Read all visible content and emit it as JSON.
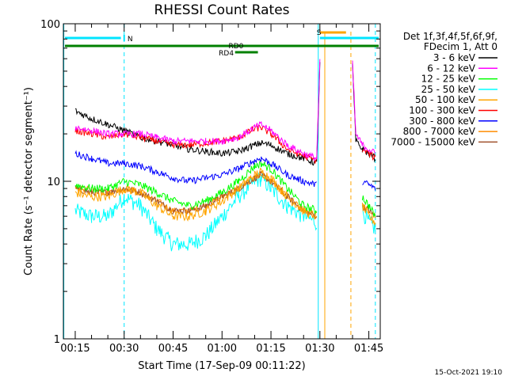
{
  "chart_data": {
    "type": "line",
    "title": "RHESSI Count Rates",
    "xlabel": "Start Time (17-Sep-09 00:11:22)",
    "ylabel": "Count Rate (s⁻¹ detector segment⁻¹)",
    "yscale": "log",
    "ylim": [
      1,
      100
    ],
    "xlim": [
      "00:11:22",
      "01:48:30"
    ],
    "x_tick_labels": [
      "00:15",
      "00:30",
      "00:45",
      "01:00",
      "01:15",
      "01:30",
      "01:45"
    ],
    "y_tick_labels": [
      "1",
      "10",
      "100"
    ],
    "x": [
      "00:15",
      "00:20",
      "00:25",
      "00:30",
      "00:35",
      "00:40",
      "00:45",
      "00:50",
      "00:55",
      "01:00",
      "01:05",
      "01:10",
      "01:12",
      "01:15",
      "01:20",
      "01:25",
      "01:29",
      "01:30",
      "01:31",
      "01:39",
      "01:40",
      "01:41",
      "01:43",
      "01:45",
      "01:47"
    ],
    "legend_header": [
      "Det 1f,3f,4f,5f,6f,9f,",
      "FDecim 1, Att 0"
    ],
    "series": [
      {
        "name": "3 - 6 keV",
        "color": "#000000",
        "values": [
          28,
          25,
          23,
          21,
          19,
          18,
          17,
          16,
          15.5,
          15,
          15.5,
          17,
          17.5,
          17,
          15,
          14,
          13,
          55,
          null,
          null,
          55,
          18,
          16,
          15,
          14
        ]
      },
      {
        "name": "6 - 12 keV",
        "color": "#ff00ff",
        "values": [
          22,
          21,
          20,
          20,
          20,
          19,
          18,
          18,
          18,
          18,
          19,
          22,
          23,
          21,
          17,
          15,
          14,
          57,
          null,
          null,
          57,
          20,
          17,
          16,
          15
        ]
      },
      {
        "name": "12 - 25 keV",
        "color": "#00ff00",
        "values": [
          9.5,
          9,
          9,
          10,
          9.5,
          8.5,
          7.5,
          7,
          7.5,
          8.5,
          10,
          12.5,
          13,
          12,
          9,
          7,
          6.5,
          null,
          null,
          null,
          null,
          null,
          8,
          7,
          6
        ]
      },
      {
        "name": "25 - 50 keV",
        "color": "#00ffff",
        "values": [
          6.5,
          6,
          6,
          8,
          7,
          5,
          4,
          4,
          4.5,
          6,
          8,
          10,
          10.5,
          9,
          7,
          6,
          5.5,
          null,
          null,
          null,
          null,
          null,
          6.5,
          5.5,
          5
        ]
      },
      {
        "name": "50 - 100 keV",
        "color": "#ffa500",
        "values": [
          8.5,
          8,
          8,
          9,
          8.5,
          7,
          6,
          6,
          6.5,
          7.5,
          9,
          11,
          11.5,
          10.5,
          8,
          6.5,
          6,
          null,
          null,
          null,
          null,
          null,
          7,
          6,
          5.5
        ]
      },
      {
        "name": "100 - 300 keV",
        "color": "#ff0000",
        "values": [
          21,
          20,
          19,
          20,
          19,
          18,
          17,
          17,
          17.5,
          18,
          19,
          21.5,
          22,
          20,
          16,
          14.5,
          13.5,
          null,
          null,
          null,
          null,
          null,
          16,
          15,
          14
        ]
      },
      {
        "name": "300 - 800 keV",
        "color": "#0000ff",
        "values": [
          15,
          14,
          13,
          13,
          12.5,
          11.5,
          10.5,
          10,
          10.5,
          11,
          12,
          13.5,
          14,
          13,
          11,
          10,
          9.5,
          null,
          null,
          null,
          null,
          null,
          10,
          9.5,
          9
        ]
      },
      {
        "name": "800 - 7000 keV",
        "color": "#ff8c00",
        "values": [
          9,
          8.8,
          8.5,
          9,
          8.5,
          7.5,
          6.5,
          6.5,
          7,
          8,
          9,
          10.5,
          11,
          10,
          8,
          6.5,
          6,
          null,
          null,
          null,
          null,
          null,
          7,
          6.5,
          6
        ]
      },
      {
        "name": "7000 - 15000 keV",
        "color": "#a0522d",
        "values": [
          9,
          8.5,
          8.5,
          9,
          8.5,
          7.5,
          6.5,
          6.5,
          7,
          8,
          9,
          10.5,
          11,
          10,
          8,
          6.5,
          6,
          null,
          null,
          null,
          null,
          null,
          7,
          6.5,
          6
        ]
      }
    ],
    "annotations": [
      {
        "label": "N",
        "color": "#00e5ff"
      },
      {
        "label": "S",
        "color": "#ffa500"
      },
      {
        "label": "RD0",
        "color": "#008000"
      },
      {
        "label": "RD4",
        "color": "#008000"
      }
    ],
    "timestamp": "15-Oct-2021 19:10"
  }
}
